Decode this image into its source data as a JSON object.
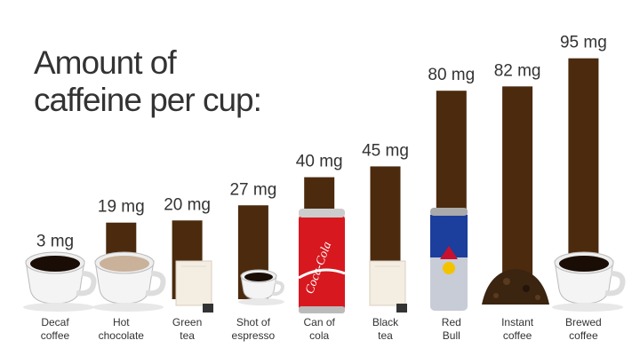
{
  "chart_data": {
    "type": "bar",
    "title": "Amount of\ncaffeine per cup:",
    "categories": [
      "Decaf\ncoffee",
      "Hot\nchocolate",
      "Green\ntea",
      "Shot of\nespresso",
      "Can of\ncola",
      "Black\ntea",
      "Red\nBull",
      "Instant\ncoffee",
      "Brewed\ncoffee"
    ],
    "values": [
      3,
      19,
      20,
      27,
      40,
      45,
      80,
      82,
      95
    ],
    "value_labels": [
      "3 mg",
      "19 mg",
      "20 mg",
      "27 mg",
      "40 mg",
      "45 mg",
      "80 mg",
      "82 mg",
      "95 mg"
    ],
    "color": "#4b2a0e"
  }
}
